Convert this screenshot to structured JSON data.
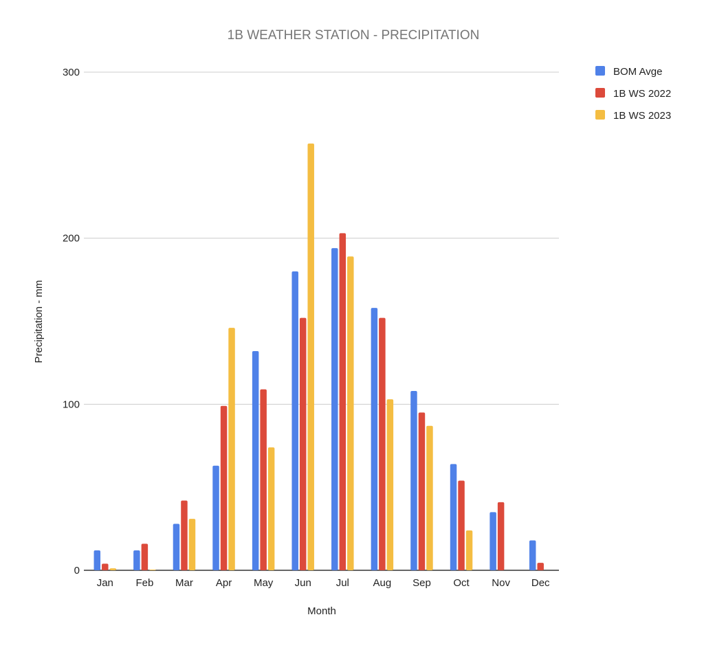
{
  "chart_data": {
    "type": "bar",
    "title": "1B WEATHER STATION - PRECIPITATION",
    "xlabel": "Month",
    "ylabel": "Precipitation - mm",
    "ylim": [
      0,
      300
    ],
    "yticks": [
      "0",
      "100",
      "200",
      "300"
    ],
    "grid": true,
    "legend_position": "right",
    "categories": [
      "Jan",
      "Feb",
      "Mar",
      "Apr",
      "May",
      "Jun",
      "Jul",
      "Aug",
      "Sep",
      "Oct",
      "Nov",
      "Dec"
    ],
    "series": [
      {
        "name": "BOM Avge",
        "color": "#4f81e8",
        "values": [
          12,
          12,
          28,
          63,
          132,
          180,
          194,
          158,
          108,
          64,
          35,
          18
        ]
      },
      {
        "name": "1B WS 2022",
        "color": "#dc4a3b",
        "values": [
          4,
          16,
          42,
          99,
          109,
          152,
          203,
          152,
          95,
          54,
          41,
          4.5
        ]
      },
      {
        "name": "1B WS 2023",
        "color": "#f4bd42",
        "values": [
          1.2,
          0.4,
          31,
          146,
          74,
          257,
          189,
          103,
          87,
          24,
          0,
          0
        ]
      }
    ]
  }
}
